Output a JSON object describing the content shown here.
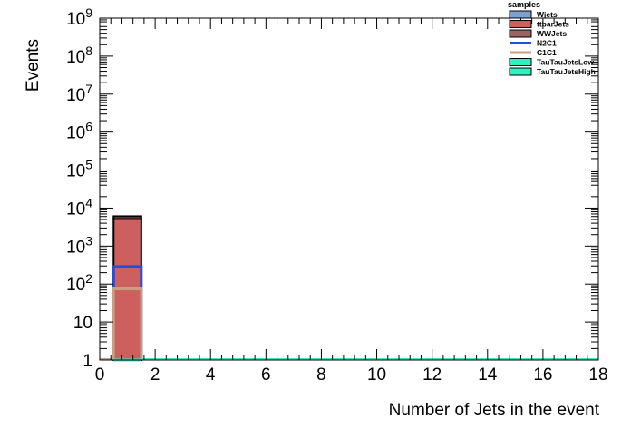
{
  "chart_data": {
    "type": "bar",
    "title": "",
    "xlabel": "Number of Jets in the event",
    "ylabel": "Events",
    "xlim": [
      0,
      18
    ],
    "ylim": [
      1,
      1000000000
    ],
    "yscale": "log",
    "grid": false,
    "legend_title": "samples",
    "legend_placement": "top-right",
    "x_tick_labels": [
      "0",
      "2",
      "4",
      "6",
      "8",
      "10",
      "12",
      "14",
      "16",
      "18"
    ],
    "y_tick_labels": [
      "1",
      "10",
      "10^2",
      "10^3",
      "10^4",
      "10^5",
      "10^6",
      "10^7",
      "10^8",
      "10^9"
    ],
    "bin_edges": [
      0.5,
      1.5
    ],
    "stacked_series": [
      {
        "name": "Wjets",
        "values": [
          0
        ],
        "color": "#7f9fcf"
      },
      {
        "name": "ttbarJets",
        "values": [
          5200
        ],
        "color": "#cd5f5f"
      },
      {
        "name": "WWJets",
        "values": [
          900
        ],
        "color": "#9a6464"
      }
    ],
    "line_series": [
      {
        "name": "N2C1",
        "values": [
          290
        ],
        "color": "#1f4fe0"
      },
      {
        "name": "C1C1",
        "values": [
          75
        ],
        "color": "#c8a080"
      },
      {
        "name": "TauTauJetsLow",
        "values": [
          0
        ],
        "color": "#2ff0c0"
      },
      {
        "name": "TauTauJetsHigh",
        "values": [
          0
        ],
        "color": "#2ff0c0"
      }
    ],
    "legend": [
      {
        "name": "Wjets",
        "style": "fill",
        "color": "#7f9fcf"
      },
      {
        "name": "ttbarJets",
        "style": "fill",
        "color": "#cd5f5f"
      },
      {
        "name": "WWJets",
        "style": "fill",
        "color": "#9a6464"
      },
      {
        "name": "N2C1",
        "style": "line",
        "color": "#1f4fe0"
      },
      {
        "name": "C1C1",
        "style": "line",
        "color": "#c8a080"
      },
      {
        "name": "TauTauJetsLow",
        "style": "fill",
        "color": "#2ff0c0"
      },
      {
        "name": "TauTauJetsHigh",
        "style": "fill",
        "color": "#2ff0c0"
      }
    ]
  }
}
